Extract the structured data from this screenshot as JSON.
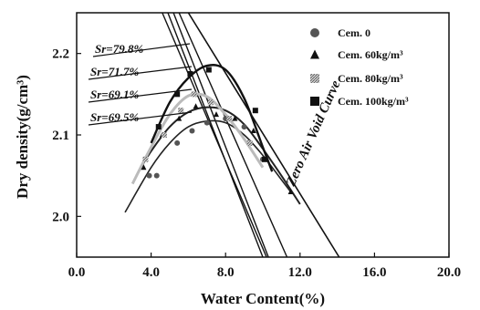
{
  "chart_data": {
    "type": "line",
    "xlabel": "Water Content(%)",
    "ylabel": "Dry density(g/cm³)",
    "xlim": [
      0,
      20
    ],
    "ylim": [
      1.95,
      2.25
    ],
    "x_ticks": [
      "0.0",
      "4.0",
      "8.0",
      "12.0",
      "16.0",
      "20.0"
    ],
    "y_ticks": [
      "2.0",
      "2.1",
      "2.2"
    ],
    "grid": false,
    "legend_position": "top-right",
    "series": [
      {
        "name": "Cem. 0",
        "marker": "circle",
        "points": [
          [
            3.9,
            2.05
          ],
          [
            4.3,
            2.05
          ],
          [
            5.4,
            2.09
          ],
          [
            6.2,
            2.105
          ],
          [
            7.0,
            2.115
          ],
          [
            8.0,
            2.12
          ],
          [
            9.0,
            2.11
          ],
          [
            10.0,
            2.07
          ]
        ],
        "curve": [
          [
            2.6,
            2.005
          ],
          [
            4.0,
            2.06
          ],
          [
            5.0,
            2.09
          ],
          [
            6.0,
            2.11
          ],
          [
            7.0,
            2.117
          ],
          [
            8.0,
            2.115
          ],
          [
            9.0,
            2.1
          ],
          [
            10.0,
            2.075
          ],
          [
            11.0,
            2.045
          ],
          [
            11.5,
            2.03
          ]
        ]
      },
      {
        "name": "Cem. 60kg/m³",
        "marker": "triangle",
        "points": [
          [
            3.6,
            2.06
          ],
          [
            4.6,
            2.1
          ],
          [
            5.5,
            2.12
          ],
          [
            6.4,
            2.135
          ],
          [
            7.5,
            2.125
          ],
          [
            8.5,
            2.12
          ],
          [
            9.5,
            2.105
          ],
          [
            11.5,
            2.03
          ]
        ],
        "curve": [
          [
            3.2,
            2.05
          ],
          [
            4.0,
            2.08
          ],
          [
            5.0,
            2.11
          ],
          [
            6.0,
            2.128
          ],
          [
            7.0,
            2.134
          ],
          [
            8.0,
            2.13
          ],
          [
            9.0,
            2.113
          ],
          [
            10.0,
            2.083
          ],
          [
            11.0,
            2.05
          ],
          [
            12.0,
            2.015
          ]
        ]
      },
      {
        "name": "Cem. 80kg/m³",
        "marker": "hatched-square",
        "points": [
          [
            3.7,
            2.07
          ],
          [
            4.7,
            2.1
          ],
          [
            5.6,
            2.13
          ],
          [
            6.3,
            2.15
          ],
          [
            7.2,
            2.14
          ],
          [
            8.2,
            2.12
          ],
          [
            9.3,
            2.09
          ]
        ],
        "curve": [
          [
            3.0,
            2.04
          ],
          [
            4.0,
            2.085
          ],
          [
            5.0,
            2.125
          ],
          [
            6.0,
            2.148
          ],
          [
            7.0,
            2.147
          ],
          [
            8.0,
            2.125
          ],
          [
            9.0,
            2.095
          ],
          [
            10.0,
            2.06
          ]
        ]
      },
      {
        "name": "Cem. 100kg/m³",
        "marker": "square",
        "points": [
          [
            4.4,
            2.11
          ],
          [
            5.4,
            2.15
          ],
          [
            6.1,
            2.175
          ],
          [
            7.1,
            2.18
          ],
          [
            9.6,
            2.13
          ],
          [
            10.1,
            2.07
          ]
        ],
        "curve": [
          [
            4.0,
            2.09
          ],
          [
            5.0,
            2.14
          ],
          [
            6.0,
            2.17
          ],
          [
            7.0,
            2.185
          ],
          [
            8.0,
            2.18
          ],
          [
            9.0,
            2.145
          ],
          [
            10.0,
            2.085
          ],
          [
            10.5,
            2.055
          ]
        ]
      }
    ],
    "reference_lines": [
      {
        "label": "Zero Air Void Curve",
        "from": [
          6.0,
          2.25
        ],
        "to": [
          14.1,
          1.95
        ]
      },
      {
        "label": "Sr=79.8%",
        "from": [
          4.6,
          2.25
        ],
        "to": [
          10.2,
          1.95
        ]
      },
      {
        "label": "Sr=71.7%",
        "from": [
          4.9,
          2.25
        ],
        "to": [
          10.0,
          1.95
        ]
      },
      {
        "label": "Sr=69.1%",
        "from": [
          5.2,
          2.25
        ],
        "to": [
          10.3,
          1.95
        ]
      },
      {
        "label": "Sr=69.5%",
        "from": [
          5.5,
          2.25
        ],
        "to": [
          11.3,
          1.95
        ]
      }
    ]
  }
}
